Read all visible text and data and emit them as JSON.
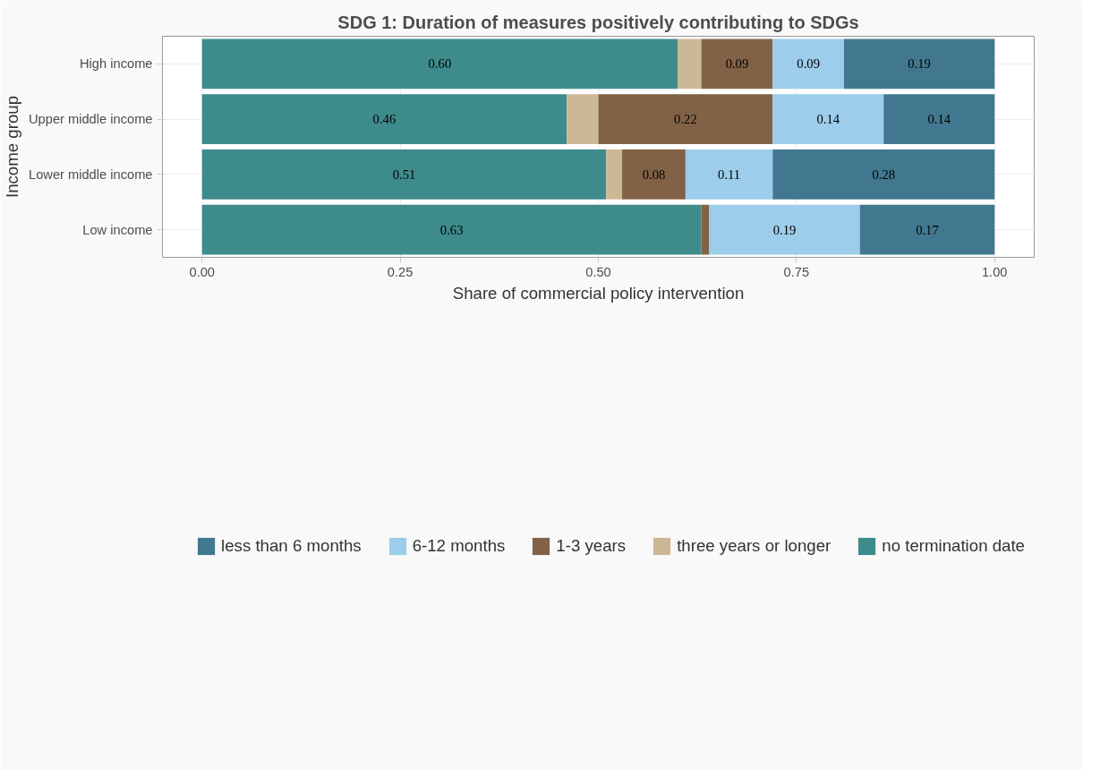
{
  "chart_data": {
    "type": "bar",
    "orientation": "horizontal",
    "stacked": true,
    "title": "SDG 1: Duration of measures positively contributing to SDGs",
    "xlabel": "Share of commercial policy intervention",
    "ylabel": "Income group",
    "categories": [
      "High income",
      "Upper middle income",
      "Lower middle income",
      "Low income"
    ],
    "series": [
      {
        "name": "no termination date",
        "color": "#3e8b8b",
        "values": [
          0.6,
          0.46,
          0.51,
          0.63
        ],
        "value_labels": [
          "0.60",
          "0.46",
          "0.51",
          "0.63"
        ]
      },
      {
        "name": "three years or longer",
        "color": "#cdb896",
        "values": [
          0.03,
          0.04,
          0.02,
          null
        ],
        "value_labels": [
          null,
          null,
          null,
          null
        ]
      },
      {
        "name": "1-3 years",
        "color": "#826246",
        "values": [
          0.09,
          0.22,
          0.08,
          0.01
        ],
        "value_labels": [
          "0.09",
          "0.22",
          "0.08",
          null
        ]
      },
      {
        "name": "6-12 months",
        "color": "#9ccdea",
        "values": [
          0.09,
          0.14,
          0.11,
          0.19
        ],
        "value_labels": [
          "0.09",
          "0.14",
          "0.11",
          "0.19"
        ]
      },
      {
        "name": "less than 6 months",
        "color": "#41788f",
        "values": [
          0.19,
          0.14,
          0.28,
          0.17
        ],
        "value_labels": [
          "0.19",
          "0.14",
          "0.28",
          "0.17"
        ]
      }
    ],
    "xlim": [
      -0.05,
      1.05
    ],
    "xticks": [
      {
        "value": 0,
        "label": "0.00"
      },
      {
        "value": 0.25,
        "label": "0.25"
      },
      {
        "value": 0.5,
        "label": "0.50"
      },
      {
        "value": 0.75,
        "label": "0.75"
      },
      {
        "value": 1,
        "label": "1.00"
      }
    ],
    "grid": true,
    "legend": "bottom"
  }
}
